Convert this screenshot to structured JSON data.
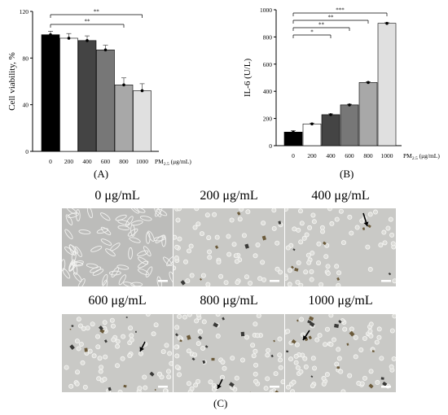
{
  "chart_data": [
    {
      "type": "bar",
      "panel_label": "(A)",
      "ylabel": "Cell viability, %",
      "categories": [
        "0",
        "200",
        "400",
        "600",
        "800",
        "1000"
      ],
      "values": [
        100,
        97,
        95,
        87,
        57,
        52
      ],
      "errors": [
        3,
        4,
        4,
        4,
        6,
        6
      ],
      "ylim": [
        0,
        120
      ],
      "yticks": [
        0,
        40,
        80,
        120
      ],
      "x_unit_label_main": "PM",
      "x_unit_label_sub": "2.5",
      "x_unit_label_tail": " (μg/mL)",
      "bar_colors": [
        "#000000",
        "#ffffff",
        "#444444",
        "#777777",
        "#a8a8a8",
        "#e0e0e0"
      ],
      "significance": [
        {
          "from": 0,
          "to": 5,
          "label": "**"
        },
        {
          "from": 0,
          "to": 4,
          "label": "**"
        }
      ]
    },
    {
      "type": "bar",
      "panel_label": "(B)",
      "ylabel": "IL-6 (U/L)",
      "categories": [
        "0",
        "200",
        "400",
        "600",
        "800",
        "1000"
      ],
      "values": [
        100,
        160,
        228,
        300,
        465,
        900
      ],
      "errors": [
        10,
        6,
        6,
        5,
        5,
        5
      ],
      "ylim": [
        0,
        1000
      ],
      "yticks": [
        0,
        200,
        400,
        600,
        800,
        1000
      ],
      "x_unit_label_main": "PM",
      "x_unit_label_sub": "2.5",
      "x_unit_label_tail": " (μg/mL)",
      "bar_colors": [
        "#000000",
        "#ffffff",
        "#444444",
        "#777777",
        "#a8a8a8",
        "#e0e0e0"
      ],
      "significance": [
        {
          "from": 0,
          "to": 5,
          "label": "***"
        },
        {
          "from": 0,
          "to": 4,
          "label": "**"
        },
        {
          "from": 0,
          "to": 3,
          "label": "**"
        },
        {
          "from": 0,
          "to": 2,
          "label": "*"
        }
      ]
    }
  ],
  "micrographs": {
    "panel_label": "(C)",
    "items": [
      {
        "title": "0 μg/mL",
        "arrow": false
      },
      {
        "title": "200 μg/mL",
        "arrow": false
      },
      {
        "title": "400 μg/mL",
        "arrow": true
      },
      {
        "title": "600 μg/mL",
        "arrow": true
      },
      {
        "title": "800 μg/mL",
        "arrow": true
      },
      {
        "title": "1000 μg/mL",
        "arrow": true
      }
    ]
  }
}
